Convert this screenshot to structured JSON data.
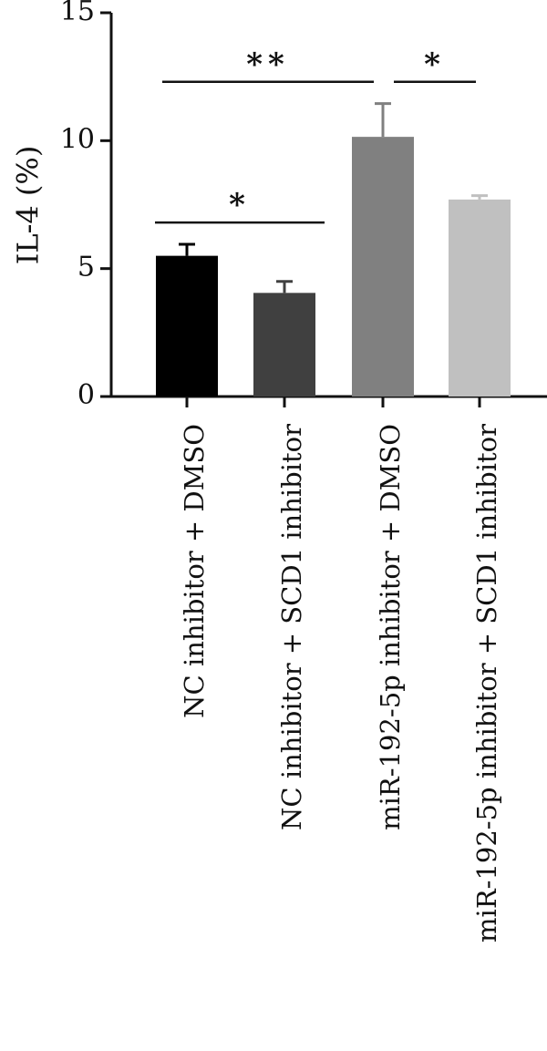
{
  "chart_data": {
    "type": "bar",
    "ylabel": "IL-4 (%)",
    "ylim": [
      0,
      15
    ],
    "yticks": [
      0,
      5,
      10,
      15
    ],
    "categories": [
      "NC inhibitor + DMSO",
      "NC inhibitor + SCD1 inhibitor",
      "miR-192-5p inhibitor + DMSO",
      "miR-192-5p inhibitor + SCD1 inhibitor"
    ],
    "values": [
      5.5,
      4.05,
      10.15,
      7.7
    ],
    "errors": [
      0.45,
      0.45,
      1.3,
      0.15
    ],
    "colors": [
      "#000000",
      "#404040",
      "#808080",
      "#c0c0c0"
    ],
    "significance": [
      {
        "from": 0,
        "to": 1,
        "label": "*",
        "y": 6.8
      },
      {
        "from": 0,
        "to": 2,
        "label": "**",
        "y": 12.3
      },
      {
        "from": 2,
        "to": 3,
        "label": "*",
        "y": 12.3
      }
    ]
  }
}
